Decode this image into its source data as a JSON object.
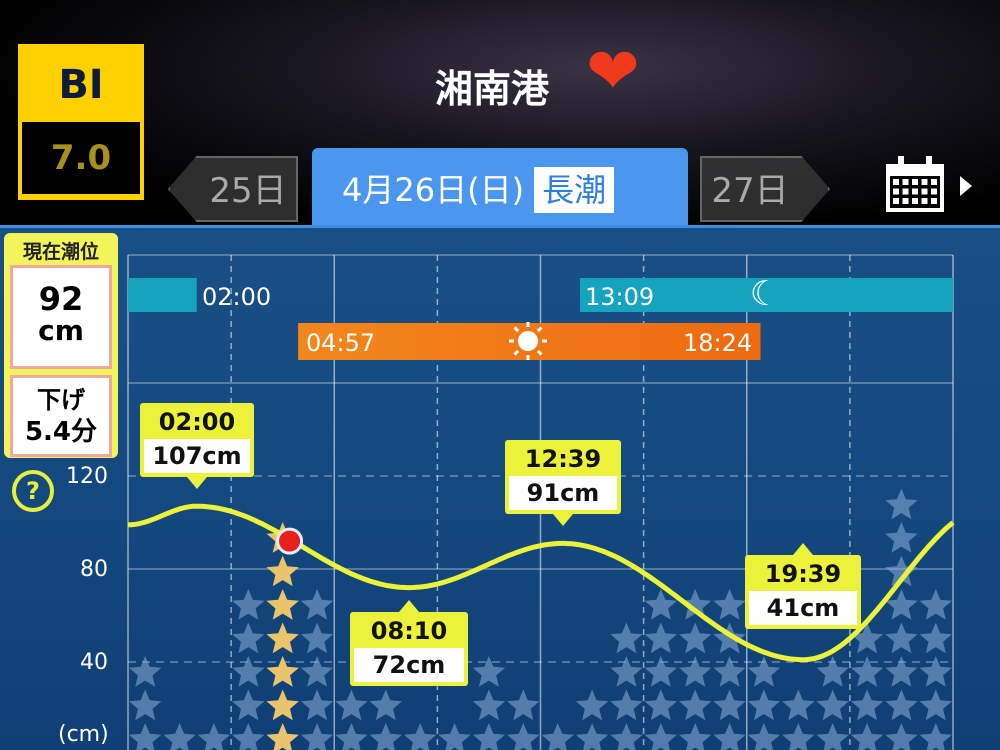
{
  "header": {
    "bi_label": "BI",
    "bi_value": "7.0",
    "title": "湘南港",
    "favorite": "heart-icon"
  },
  "date_nav": {
    "prev": "25日",
    "current": "4月26日(日)",
    "tide_type": "長潮",
    "next": "27日"
  },
  "status": {
    "title": "現在潮位",
    "level_value": "92",
    "level_unit": "cm",
    "trend_label": "下げ",
    "trend_value": "5.4分",
    "help": "?"
  },
  "colors": {
    "curve": "#ecf23a",
    "moon_bar": "#16a3bd",
    "sun_bar": "#f07a14",
    "current_marker": "#e8221a",
    "tab_active": "#4b96ef"
  },
  "moon": {
    "set": "02:00",
    "rise": "13:09"
  },
  "sun": {
    "rise": "04:57",
    "set": "18:24"
  },
  "chart_data": {
    "type": "line",
    "ylabel": "(cm)",
    "yticks": [
      "120",
      "80",
      "40"
    ],
    "xlim_hours": [
      0,
      24
    ],
    "ylim": [
      0,
      135
    ],
    "extremes": [
      {
        "time": "02:00",
        "height": "107cm",
        "hour": 2.0,
        "value": 107,
        "kind": "high"
      },
      {
        "time": "08:10",
        "height": "72cm",
        "hour": 8.17,
        "value": 72,
        "kind": "low"
      },
      {
        "time": "12:39",
        "height": "91cm",
        "hour": 12.65,
        "value": 91,
        "kind": "high"
      },
      {
        "time": "19:39",
        "height": "41cm",
        "hour": 19.65,
        "value": 41,
        "kind": "low"
      }
    ],
    "start_value": 99,
    "end_value": 100,
    "current": {
      "hour": 4.7,
      "value": 92
    },
    "hourly_stars": [
      3,
      1,
      1,
      5,
      7,
      5,
      2,
      2,
      1,
      1,
      3,
      2,
      1,
      2,
      4,
      5,
      5,
      5,
      3,
      2,
      3,
      4,
      8,
      5
    ],
    "current_hour_index": 4
  }
}
